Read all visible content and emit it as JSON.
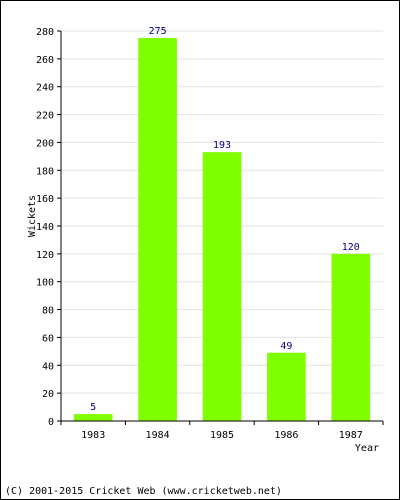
{
  "chart_data": {
    "type": "bar",
    "categories": [
      "1983",
      "1984",
      "1985",
      "1986",
      "1987"
    ],
    "values": [
      5,
      275,
      193,
      49,
      120
    ],
    "title": "",
    "xlabel": "Year",
    "ylabel": "Wickets",
    "ylim": [
      0,
      280
    ],
    "yticks": [
      0,
      20,
      40,
      60,
      80,
      100,
      120,
      140,
      160,
      180,
      200,
      220,
      240,
      260,
      280
    ],
    "grid": true,
    "data_labels": true,
    "bar_color": "#80ff00",
    "label_color": "#000080"
  },
  "footer": "(C) 2001-2015 Cricket Web (www.cricketweb.net)"
}
